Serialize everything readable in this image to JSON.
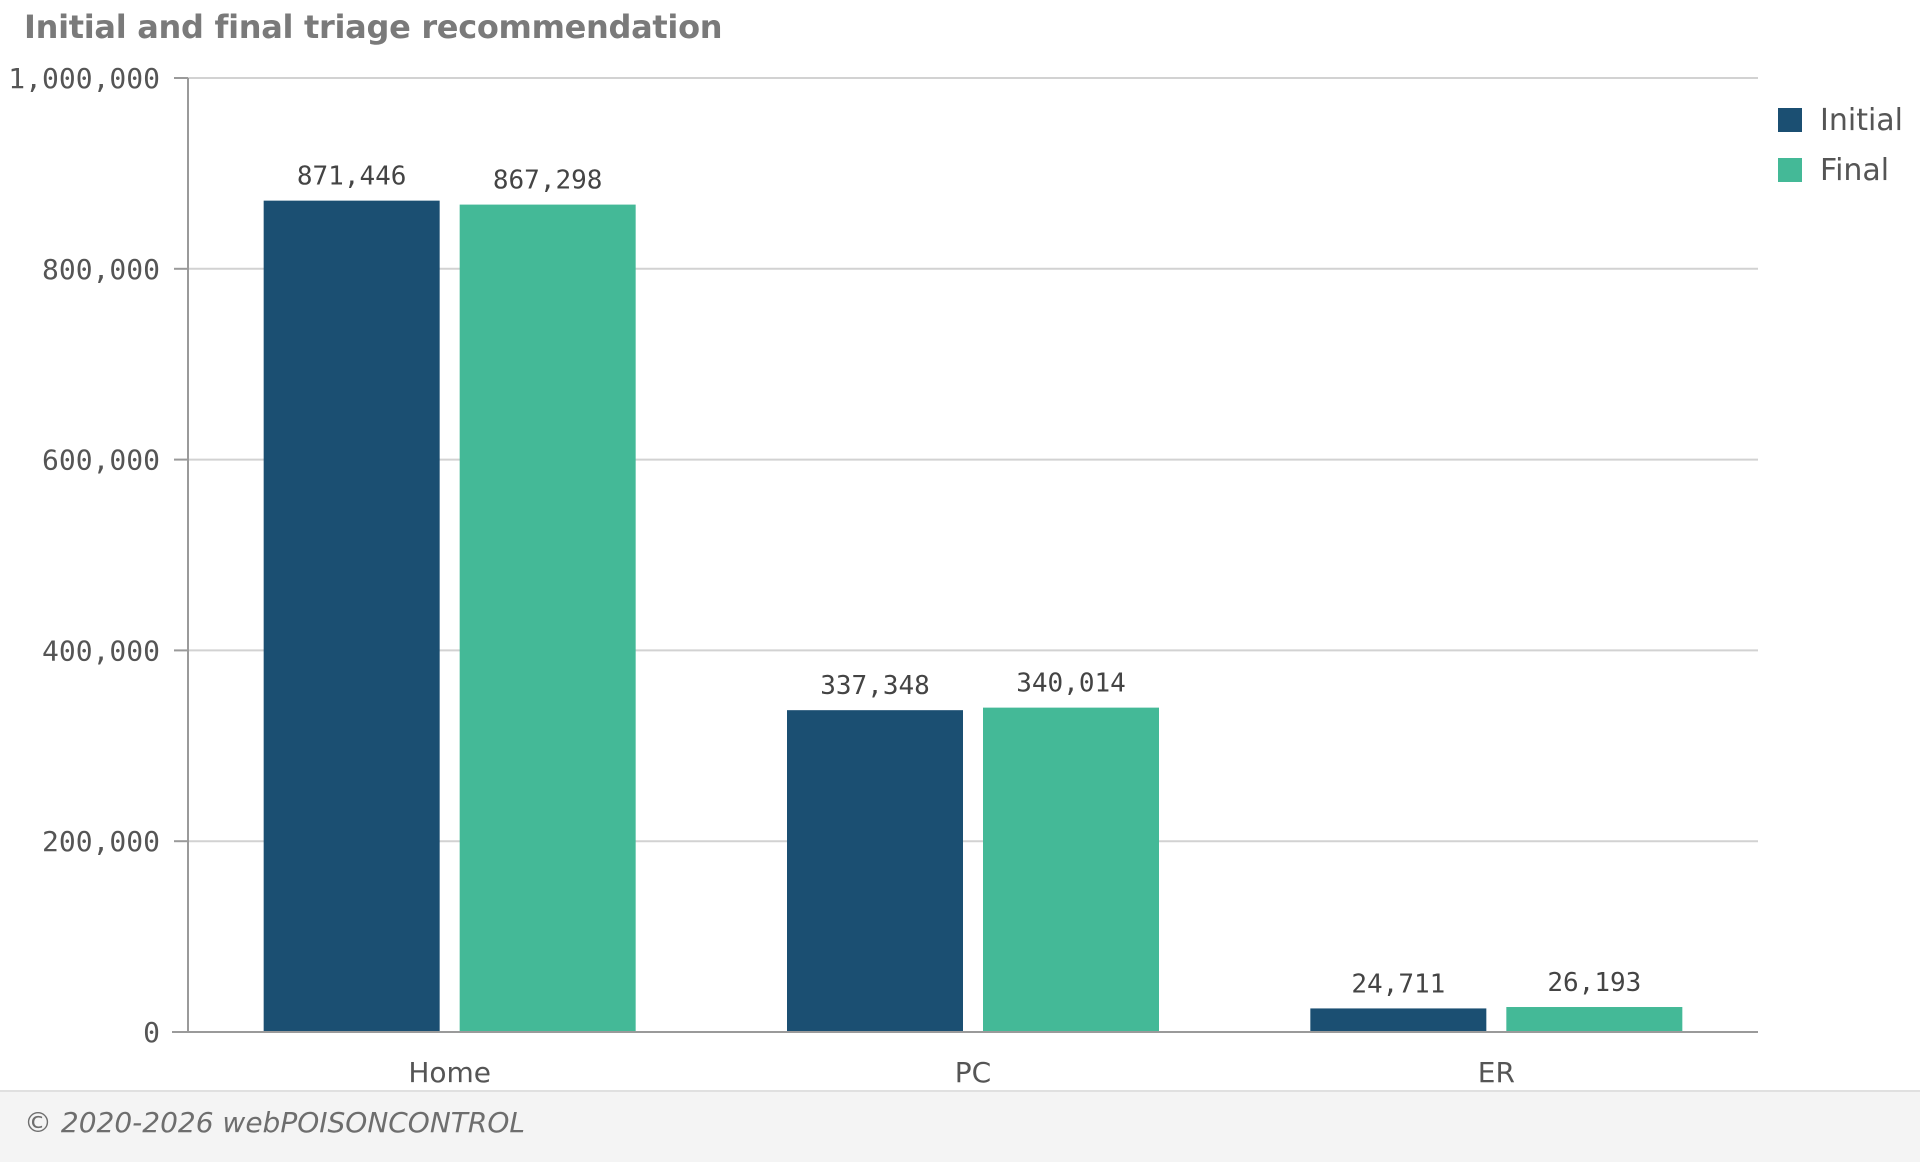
{
  "chart_data": {
    "type": "bar",
    "title": "Initial and final triage recommendation",
    "categories": [
      "Home",
      "PC",
      "ER"
    ],
    "series": [
      {
        "name": "Initial",
        "values": [
          871446,
          337348,
          24711
        ],
        "color": "#1b4f72"
      },
      {
        "name": "Final",
        "values": [
          867298,
          340014,
          26193
        ],
        "color": "#44b997"
      }
    ],
    "data_labels": [
      [
        "871,446",
        "337,348",
        "24,711"
      ],
      [
        "867,298",
        "340,014",
        "26,193"
      ]
    ],
    "yticks": [
      {
        "value": 0,
        "label": "0"
      },
      {
        "value": 200000,
        "label": "200,000"
      },
      {
        "value": 400000,
        "label": "400,000"
      },
      {
        "value": 600000,
        "label": "600,000"
      },
      {
        "value": 800000,
        "label": "800,000"
      },
      {
        "value": 1000000,
        "label": "1,000,000"
      }
    ],
    "ylim": [
      0,
      1000000
    ],
    "xlabel": "",
    "ylabel": "",
    "grid": true,
    "legend_position": "top-right"
  },
  "footer": {
    "text": "© 2020-2026 webPOISONCONTROL"
  }
}
